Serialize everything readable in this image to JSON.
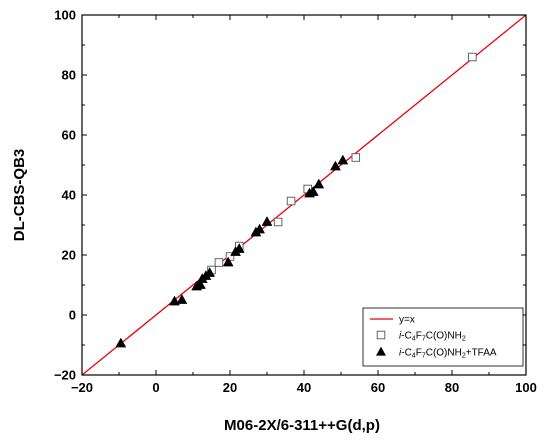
{
  "chart_data": {
    "type": "scatter",
    "title": "",
    "xlabel": "M06-2X/6-311++G(d,p)",
    "ylabel": "DL-CBS-QB3",
    "xlim": [
      -20,
      100
    ],
    "ylim": [
      -20,
      100
    ],
    "x_ticks": [
      -20,
      0,
      20,
      40,
      60,
      80,
      100
    ],
    "y_ticks": [
      -20,
      0,
      20,
      40,
      60,
      80,
      100
    ],
    "x_tick_labels": [
      "−20",
      "0",
      "20",
      "40",
      "60",
      "80",
      "100"
    ],
    "y_tick_labels": [
      "−20",
      "0",
      "20",
      "40",
      "60",
      "80",
      "100"
    ],
    "grid": false,
    "legend_position": "bottom-right",
    "reference_line": {
      "name": "y=x",
      "color": "#e8000b",
      "from": [
        -20,
        -20
      ],
      "to": [
        100,
        100
      ]
    },
    "series": [
      {
        "name": "i-C4F7C(O)NH2",
        "legend": {
          "prefix": "i",
          "parts": [
            "-C",
            "4",
            "F",
            "7",
            "C(O)NH",
            "2",
            ""
          ]
        },
        "marker": "open-square",
        "color": "#555555",
        "points": [
          {
            "x": 85.5,
            "y": 86.0
          },
          {
            "x": 54.0,
            "y": 52.5
          },
          {
            "x": 41.0,
            "y": 42.0
          },
          {
            "x": 36.5,
            "y": 38.0
          },
          {
            "x": 33.0,
            "y": 31.0
          },
          {
            "x": 22.5,
            "y": 23.0
          },
          {
            "x": 20.0,
            "y": 19.5
          },
          {
            "x": 17.0,
            "y": 17.5
          },
          {
            "x": 15.0,
            "y": 15.0
          }
        ]
      },
      {
        "name": "i-C4F7C(O)NH2+TFAA",
        "legend": {
          "prefix": "i",
          "parts": [
            "-C",
            "4",
            "F",
            "7",
            "C(O)NH",
            "2",
            "+TFAA"
          ]
        },
        "marker": "filled-triangle",
        "color": "#000000",
        "points": [
          {
            "x": -9.5,
            "y": -9.5
          },
          {
            "x": 5.0,
            "y": 4.5
          },
          {
            "x": 7.0,
            "y": 5.0
          },
          {
            "x": 11.0,
            "y": 9.5
          },
          {
            "x": 12.0,
            "y": 10.0
          },
          {
            "x": 12.5,
            "y": 12.0
          },
          {
            "x": 13.5,
            "y": 13.0
          },
          {
            "x": 14.5,
            "y": 14.0
          },
          {
            "x": 19.5,
            "y": 17.5
          },
          {
            "x": 21.5,
            "y": 21.0
          },
          {
            "x": 22.5,
            "y": 22.0
          },
          {
            "x": 27.0,
            "y": 27.5
          },
          {
            "x": 28.0,
            "y": 28.5
          },
          {
            "x": 30.0,
            "y": 31.0
          },
          {
            "x": 41.5,
            "y": 40.5
          },
          {
            "x": 42.5,
            "y": 41.0
          },
          {
            "x": 44.0,
            "y": 43.5
          },
          {
            "x": 48.5,
            "y": 49.5
          },
          {
            "x": 50.5,
            "y": 51.5
          }
        ]
      }
    ]
  }
}
